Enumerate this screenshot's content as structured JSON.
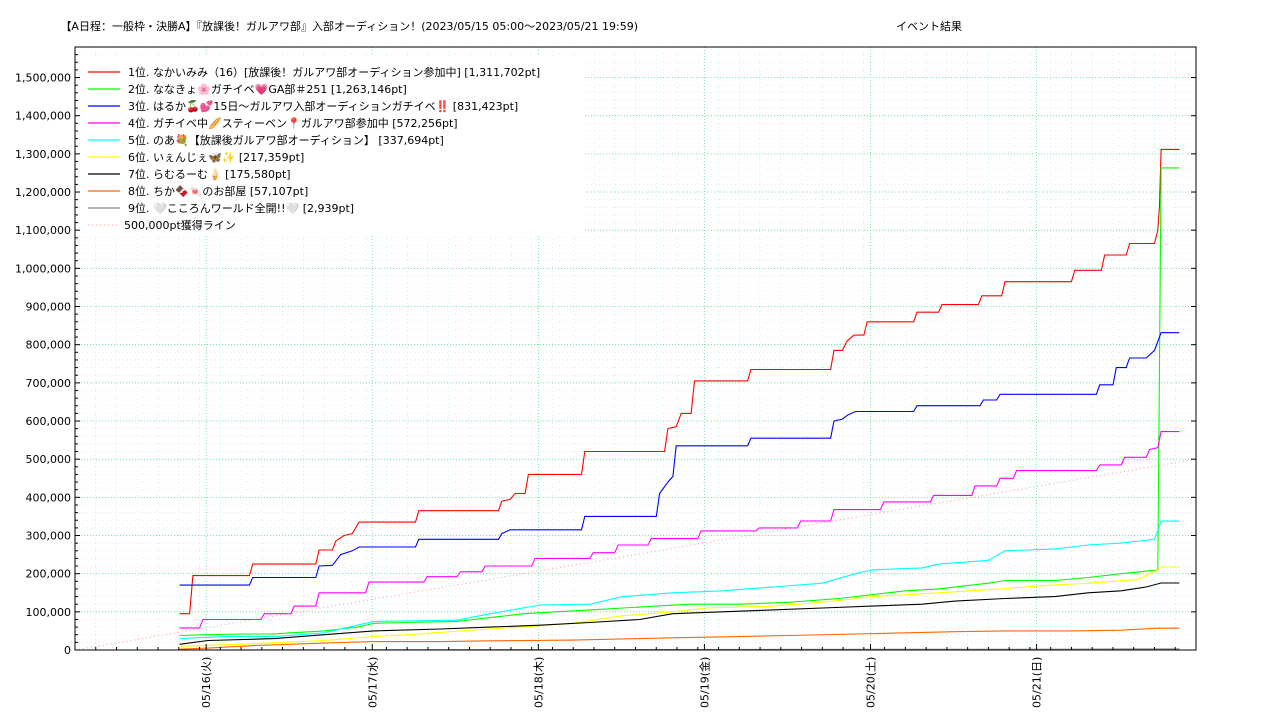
{
  "chart_data": {
    "type": "line",
    "title": "【A日程：一般枠・決勝A】『放課後！ガルアワ部』入部オーディション！(2023/05/15 05:00～2023/05/21 19:59)",
    "title_suffix": "イベント結果",
    "xlabel": "",
    "ylabel": "",
    "x_unit": "days since 2023/05/15 05:00",
    "xlim": [
      0,
      6.75
    ],
    "ylim": [
      0,
      1580000
    ],
    "y_ticks": [
      0,
      100000,
      200000,
      300000,
      400000,
      500000,
      600000,
      700000,
      800000,
      900000,
      1000000,
      1100000,
      1200000,
      1300000,
      1400000,
      1500000
    ],
    "y_tick_labels": [
      "0",
      "100,000",
      "200,000",
      "300,000",
      "400,000",
      "500,000",
      "600,000",
      "700,000",
      "800,000",
      "900,000",
      "1,000,000",
      "1,100,000",
      "1,200,000",
      "1,300,000",
      "1,400,000",
      "1,500,000"
    ],
    "x_ticks": [
      0.79,
      1.79,
      2.79,
      3.79,
      4.79,
      5.79
    ],
    "x_tick_labels": [
      "05/16(火)",
      "05/17(水)",
      "05/18(木)",
      "05/19(金)",
      "05/20(土)",
      "05/21(日)"
    ],
    "grid": true,
    "legend_position": "top-left",
    "series": [
      {
        "name": "1位. なかいみみ（16）[放課後！ガルアワ部オーディション参加中] [1,311,702pt]",
        "color": "#ff0000",
        "points": [
          [
            0.63,
            95000
          ],
          [
            0.69,
            95000
          ],
          [
            0.71,
            195000
          ],
          [
            1.05,
            195000
          ],
          [
            1.07,
            225000
          ],
          [
            1.45,
            225000
          ],
          [
            1.47,
            262000
          ],
          [
            1.55,
            262000
          ],
          [
            1.57,
            285000
          ],
          [
            1.62,
            300000
          ],
          [
            1.67,
            305000
          ],
          [
            1.71,
            335000
          ],
          [
            2.05,
            335000
          ],
          [
            2.07,
            365000
          ],
          [
            2.55,
            365000
          ],
          [
            2.57,
            390000
          ],
          [
            2.62,
            395000
          ],
          [
            2.65,
            410000
          ],
          [
            2.71,
            410000
          ],
          [
            2.73,
            460000
          ],
          [
            3.05,
            460000
          ],
          [
            3.07,
            520000
          ],
          [
            3.55,
            520000
          ],
          [
            3.57,
            580000
          ],
          [
            3.62,
            585000
          ],
          [
            3.65,
            620000
          ],
          [
            3.71,
            620000
          ],
          [
            3.73,
            705000
          ],
          [
            4.05,
            705000
          ],
          [
            4.07,
            735000
          ],
          [
            4.55,
            735000
          ],
          [
            4.57,
            785000
          ],
          [
            4.62,
            785000
          ],
          [
            4.65,
            810000
          ],
          [
            4.69,
            825000
          ],
          [
            4.75,
            825000
          ],
          [
            4.77,
            860000
          ],
          [
            5.05,
            860000
          ],
          [
            5.07,
            885000
          ],
          [
            5.2,
            885000
          ],
          [
            5.22,
            905000
          ],
          [
            5.44,
            905000
          ],
          [
            5.46,
            928000
          ],
          [
            5.58,
            928000
          ],
          [
            5.6,
            965000
          ],
          [
            6.0,
            965000
          ],
          [
            6.02,
            995000
          ],
          [
            6.18,
            995000
          ],
          [
            6.2,
            1035000
          ],
          [
            6.33,
            1035000
          ],
          [
            6.35,
            1065000
          ],
          [
            6.5,
            1065000
          ],
          [
            6.52,
            1100000
          ],
          [
            6.53,
            1165000
          ],
          [
            6.54,
            1311702
          ],
          [
            6.65,
            1311702
          ]
        ]
      },
      {
        "name": "2位. ななきょ🌸ガチイベ💗GA部＃251 [1,263,146pt]",
        "color": "#00ff00",
        "points": [
          [
            0.63,
            38000
          ],
          [
            0.8,
            40000
          ],
          [
            1.0,
            42000
          ],
          [
            1.2,
            42000
          ],
          [
            1.3,
            45000
          ],
          [
            1.5,
            50000
          ],
          [
            1.7,
            60000
          ],
          [
            1.8,
            70000
          ],
          [
            2.0,
            72000
          ],
          [
            2.3,
            75000
          ],
          [
            2.5,
            85000
          ],
          [
            2.7,
            95000
          ],
          [
            2.9,
            100000
          ],
          [
            3.1,
            105000
          ],
          [
            3.3,
            110000
          ],
          [
            3.5,
            115000
          ],
          [
            3.7,
            120000
          ],
          [
            4.0,
            120000
          ],
          [
            4.3,
            125000
          ],
          [
            4.6,
            135000
          ],
          [
            4.8,
            145000
          ],
          [
            5.0,
            155000
          ],
          [
            5.2,
            160000
          ],
          [
            5.4,
            170000
          ],
          [
            5.5,
            175000
          ],
          [
            5.6,
            182000
          ],
          [
            5.9,
            182000
          ],
          [
            6.1,
            190000
          ],
          [
            6.3,
            200000
          ],
          [
            6.52,
            210000
          ],
          [
            6.54,
            1263146
          ],
          [
            6.65,
            1263146
          ]
        ]
      },
      {
        "name": "3位. はるか🍒💕15日〜ガルアワ入部オーディションガチイベ‼️ [831,423pt]",
        "color": "#0000ff",
        "points": [
          [
            0.63,
            170000
          ],
          [
            1.05,
            170000
          ],
          [
            1.07,
            190000
          ],
          [
            1.45,
            190000
          ],
          [
            1.47,
            220000
          ],
          [
            1.55,
            222000
          ],
          [
            1.6,
            250000
          ],
          [
            1.67,
            260000
          ],
          [
            1.71,
            270000
          ],
          [
            2.05,
            270000
          ],
          [
            2.07,
            290000
          ],
          [
            2.55,
            290000
          ],
          [
            2.57,
            305000
          ],
          [
            2.62,
            315000
          ],
          [
            3.05,
            315000
          ],
          [
            3.07,
            350000
          ],
          [
            3.5,
            350000
          ],
          [
            3.52,
            410000
          ],
          [
            3.57,
            440000
          ],
          [
            3.6,
            455000
          ],
          [
            3.62,
            535000
          ],
          [
            4.05,
            535000
          ],
          [
            4.07,
            555000
          ],
          [
            4.55,
            555000
          ],
          [
            4.57,
            600000
          ],
          [
            4.62,
            605000
          ],
          [
            4.65,
            615000
          ],
          [
            4.7,
            625000
          ],
          [
            5.05,
            625000
          ],
          [
            5.07,
            640000
          ],
          [
            5.45,
            640000
          ],
          [
            5.47,
            655000
          ],
          [
            5.55,
            655000
          ],
          [
            5.57,
            670000
          ],
          [
            6.15,
            670000
          ],
          [
            6.17,
            695000
          ],
          [
            6.25,
            695000
          ],
          [
            6.27,
            740000
          ],
          [
            6.33,
            740000
          ],
          [
            6.35,
            765000
          ],
          [
            6.45,
            765000
          ],
          [
            6.5,
            785000
          ],
          [
            6.54,
            831423
          ],
          [
            6.65,
            831423
          ]
        ]
      },
      {
        "name": "4位. ガチイベ中🥖スティーベン📍ガルアワ部参加中 [572,256pt]",
        "color": "#ff00ff",
        "points": [
          [
            0.63,
            58000
          ],
          [
            0.75,
            58000
          ],
          [
            0.77,
            80000
          ],
          [
            1.12,
            80000
          ],
          [
            1.14,
            95000
          ],
          [
            1.3,
            95000
          ],
          [
            1.32,
            115000
          ],
          [
            1.45,
            115000
          ],
          [
            1.47,
            150000
          ],
          [
            1.75,
            150000
          ],
          [
            1.77,
            178000
          ],
          [
            2.1,
            178000
          ],
          [
            2.12,
            192000
          ],
          [
            2.3,
            192000
          ],
          [
            2.32,
            205000
          ],
          [
            2.45,
            205000
          ],
          [
            2.47,
            220000
          ],
          [
            2.75,
            220000
          ],
          [
            2.77,
            240000
          ],
          [
            3.1,
            240000
          ],
          [
            3.12,
            255000
          ],
          [
            3.25,
            255000
          ],
          [
            3.27,
            275000
          ],
          [
            3.45,
            275000
          ],
          [
            3.47,
            292000
          ],
          [
            3.75,
            292000
          ],
          [
            3.77,
            312000
          ],
          [
            4.1,
            312000
          ],
          [
            4.12,
            320000
          ],
          [
            4.35,
            320000
          ],
          [
            4.37,
            338000
          ],
          [
            4.55,
            338000
          ],
          [
            4.57,
            368000
          ],
          [
            4.85,
            368000
          ],
          [
            4.87,
            388000
          ],
          [
            5.15,
            388000
          ],
          [
            5.17,
            405000
          ],
          [
            5.4,
            405000
          ],
          [
            5.42,
            430000
          ],
          [
            5.55,
            430000
          ],
          [
            5.57,
            450000
          ],
          [
            5.65,
            450000
          ],
          [
            5.67,
            470000
          ],
          [
            6.15,
            470000
          ],
          [
            6.17,
            485000
          ],
          [
            6.3,
            485000
          ],
          [
            6.32,
            505000
          ],
          [
            6.45,
            505000
          ],
          [
            6.47,
            525000
          ],
          [
            6.52,
            530000
          ],
          [
            6.54,
            572256
          ],
          [
            6.65,
            572256
          ]
        ]
      },
      {
        "name": "5位. のあ💐【放課後ガルアワ部オーディション】 [337,694pt]",
        "color": "#00ffff",
        "points": [
          [
            0.63,
            30000
          ],
          [
            0.9,
            35000
          ],
          [
            1.2,
            35000
          ],
          [
            1.5,
            45000
          ],
          [
            1.7,
            65000
          ],
          [
            1.8,
            75000
          ],
          [
            2.3,
            78000
          ],
          [
            2.5,
            95000
          ],
          [
            2.8,
            118000
          ],
          [
            3.1,
            120000
          ],
          [
            3.3,
            140000
          ],
          [
            3.6,
            150000
          ],
          [
            3.9,
            155000
          ],
          [
            4.2,
            165000
          ],
          [
            4.5,
            175000
          ],
          [
            4.7,
            200000
          ],
          [
            4.8,
            210000
          ],
          [
            5.1,
            215000
          ],
          [
            5.2,
            225000
          ],
          [
            5.5,
            235000
          ],
          [
            5.6,
            260000
          ],
          [
            5.9,
            265000
          ],
          [
            6.1,
            275000
          ],
          [
            6.3,
            280000
          ],
          [
            6.5,
            290000
          ],
          [
            6.54,
            337694
          ],
          [
            6.65,
            337694
          ]
        ]
      },
      {
        "name": "6位. いぇんじぇ🦋✨ [217,359pt]",
        "color": "#ffff00",
        "points": [
          [
            0.63,
            10000
          ],
          [
            1.0,
            15000
          ],
          [
            1.5,
            25000
          ],
          [
            1.8,
            35000
          ],
          [
            2.0,
            40000
          ],
          [
            2.5,
            55000
          ],
          [
            3.0,
            70000
          ],
          [
            3.3,
            90000
          ],
          [
            3.6,
            100000
          ],
          [
            3.8,
            110000
          ],
          [
            4.2,
            115000
          ],
          [
            4.5,
            125000
          ],
          [
            4.8,
            140000
          ],
          [
            5.2,
            150000
          ],
          [
            5.5,
            158000
          ],
          [
            5.8,
            168000
          ],
          [
            6.1,
            175000
          ],
          [
            6.4,
            185000
          ],
          [
            6.52,
            210000
          ],
          [
            6.54,
            217359
          ],
          [
            6.65,
            217359
          ]
        ]
      },
      {
        "name": "7位. らむるーむ🍦 [175,580pt]",
        "color": "#000000",
        "points": [
          [
            0.63,
            15000
          ],
          [
            0.8,
            25000
          ],
          [
            1.2,
            30000
          ],
          [
            1.5,
            40000
          ],
          [
            1.8,
            50000
          ],
          [
            2.2,
            55000
          ],
          [
            2.5,
            60000
          ],
          [
            2.8,
            65000
          ],
          [
            3.1,
            72000
          ],
          [
            3.4,
            80000
          ],
          [
            3.6,
            95000
          ],
          [
            3.9,
            100000
          ],
          [
            4.2,
            105000
          ],
          [
            4.5,
            110000
          ],
          [
            4.8,
            115000
          ],
          [
            5.1,
            120000
          ],
          [
            5.3,
            128000
          ],
          [
            5.6,
            135000
          ],
          [
            5.9,
            140000
          ],
          [
            6.1,
            150000
          ],
          [
            6.3,
            155000
          ],
          [
            6.45,
            165000
          ],
          [
            6.54,
            175580
          ],
          [
            6.65,
            175580
          ]
        ]
      },
      {
        "name": "8位. ちか🍫🍬のお部屋 [57,107pt]",
        "color": "#ff6600",
        "points": [
          [
            0.63,
            2000
          ],
          [
            0.8,
            5000
          ],
          [
            1.1,
            12000
          ],
          [
            1.5,
            18000
          ],
          [
            1.8,
            22000
          ],
          [
            2.2,
            22000
          ],
          [
            2.5,
            24000
          ],
          [
            3.0,
            26000
          ],
          [
            3.2,
            28000
          ],
          [
            3.6,
            32000
          ],
          [
            4.0,
            35000
          ],
          [
            4.3,
            38000
          ],
          [
            4.7,
            42000
          ],
          [
            5.0,
            45000
          ],
          [
            5.3,
            48000
          ],
          [
            5.6,
            50000
          ],
          [
            6.0,
            50000
          ],
          [
            6.3,
            52000
          ],
          [
            6.52,
            57107
          ],
          [
            6.65,
            57107
          ]
        ]
      },
      {
        "name": "9位. 🤍こころんワールド全開!!🤍 [2,939pt]",
        "color": "#888888",
        "points": [
          [
            0.63,
            0
          ],
          [
            3.0,
            1000
          ],
          [
            6.0,
            2000
          ],
          [
            6.54,
            2939
          ],
          [
            6.65,
            2939
          ]
        ]
      },
      {
        "name": "500,000pt獲得ライン",
        "color": "#ff9999",
        "dotted": true,
        "points": [
          [
            0,
            0
          ],
          [
            6.75,
            500000
          ]
        ]
      }
    ]
  }
}
